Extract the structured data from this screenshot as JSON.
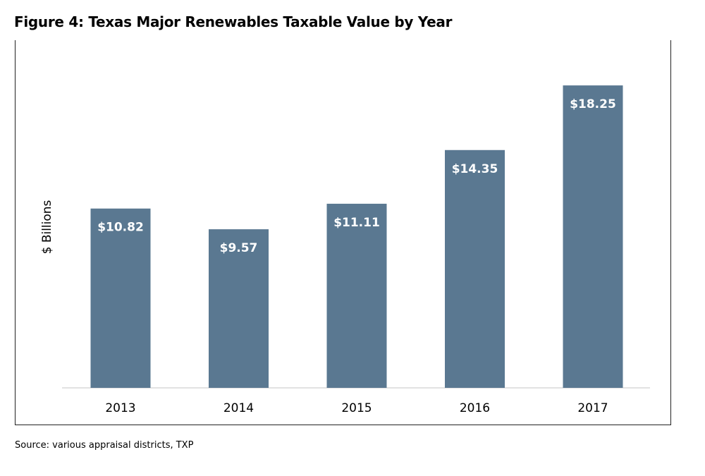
{
  "figure": {
    "title": "Figure 4: Texas Major Renewables Taxable Value by Year",
    "source": "Source: various appraisal districts, TXP"
  },
  "chart_data": {
    "type": "bar",
    "title": "Figure 4: Texas Major Renewables Taxable Value by Year",
    "xlabel": "",
    "ylabel": "$ Billions",
    "categories": [
      "2013",
      "2014",
      "2015",
      "2016",
      "2017"
    ],
    "values": [
      10.82,
      9.57,
      11.11,
      14.35,
      18.25
    ],
    "data_labels": [
      "$10.82",
      "$9.57",
      "$11.11",
      "$14.35",
      "$18.25"
    ],
    "ylim": [
      0,
      20
    ],
    "grid": false,
    "legend": "none",
    "bar_color": "#5a7891",
    "label_color": "#ffffff"
  }
}
